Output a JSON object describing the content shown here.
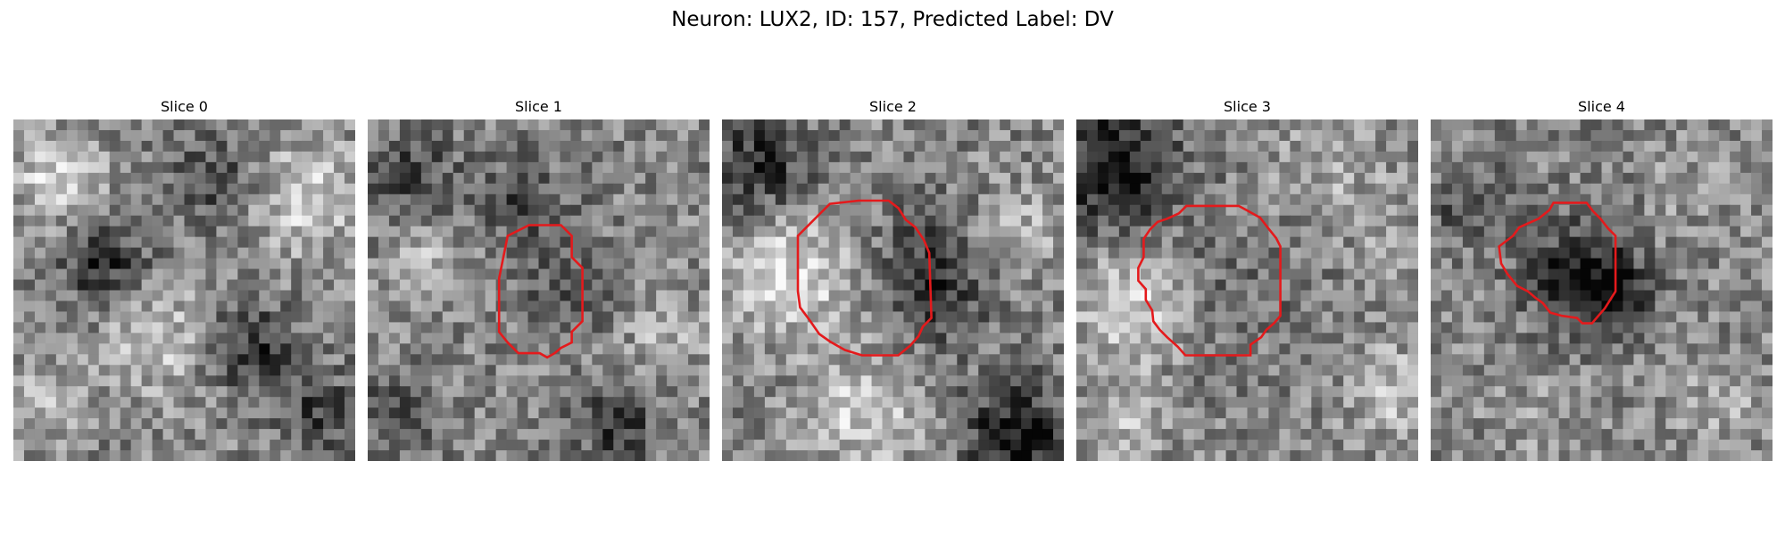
{
  "figure": {
    "title": "Neuron: LUX2, ID: 157, Predicted Label: DV"
  },
  "panels": [
    {
      "title": "Slice 0",
      "has_contour": false
    },
    {
      "title": "Slice 1",
      "has_contour": true
    },
    {
      "title": "Slice 2",
      "has_contour": true
    },
    {
      "title": "Slice 3",
      "has_contour": true
    },
    {
      "title": "Slice 4",
      "has_contour": true
    }
  ],
  "colors": {
    "contour": "#e41a1c"
  }
}
